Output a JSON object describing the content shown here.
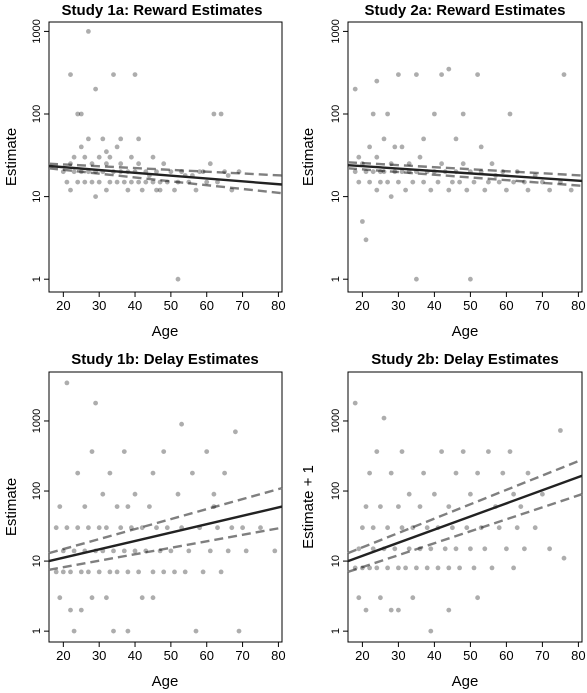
{
  "chart_data": [
    {
      "type": "scatter",
      "title": "Study 1a: Reward Estimates",
      "xlabel": "Age",
      "ylabel": "Estimate",
      "x_ticks": [
        "20",
        "30",
        "40",
        "50",
        "60",
        "70",
        "80"
      ],
      "y_ticks": [
        "1",
        "10",
        "100",
        "1000"
      ],
      "xlim": [
        16,
        81
      ],
      "ylim": [
        0.7,
        1300
      ],
      "y_scale": "log",
      "points": [
        [
          20,
          20
        ],
        [
          21,
          15
        ],
        [
          22,
          25
        ],
        [
          22,
          12
        ],
        [
          23,
          30
        ],
        [
          23,
          20
        ],
        [
          24,
          15
        ],
        [
          24,
          100
        ],
        [
          25,
          20
        ],
        [
          25,
          40
        ],
        [
          26,
          15
        ],
        [
          26,
          30
        ],
        [
          27,
          20
        ],
        [
          27,
          50
        ],
        [
          27,
          1000
        ],
        [
          28,
          15
        ],
        [
          28,
          25
        ],
        [
          29,
          20
        ],
        [
          29,
          10
        ],
        [
          30,
          30
        ],
        [
          30,
          15
        ],
        [
          31,
          20
        ],
        [
          31,
          50
        ],
        [
          32,
          25
        ],
        [
          32,
          12
        ],
        [
          33,
          15
        ],
        [
          33,
          30
        ],
        [
          34,
          20
        ],
        [
          34,
          300
        ],
        [
          35,
          15
        ],
        [
          35,
          40
        ],
        [
          36,
          20
        ],
        [
          36,
          25
        ],
        [
          37,
          15
        ],
        [
          38,
          20
        ],
        [
          38,
          12
        ],
        [
          39,
          15
        ],
        [
          39,
          30
        ],
        [
          40,
          20
        ],
        [
          40,
          300
        ],
        [
          41,
          15
        ],
        [
          41,
          25
        ],
        [
          42,
          12
        ],
        [
          43,
          20
        ],
        [
          43,
          15
        ],
        [
          44,
          18
        ],
        [
          45,
          15
        ],
        [
          46,
          20
        ],
        [
          46,
          12
        ],
        [
          47,
          15
        ],
        [
          48,
          25
        ],
        [
          49,
          15
        ],
        [
          50,
          20
        ],
        [
          51,
          12
        ],
        [
          52,
          1
        ],
        [
          52,
          15
        ],
        [
          53,
          20
        ],
        [
          55,
          15
        ],
        [
          56,
          18
        ],
        [
          57,
          12
        ],
        [
          58,
          20
        ],
        [
          60,
          15
        ],
        [
          61,
          25
        ],
        [
          62,
          100
        ],
        [
          63,
          15
        ],
        [
          64,
          100
        ],
        [
          65,
          20
        ],
        [
          67,
          12
        ],
        [
          69,
          20
        ],
        [
          22,
          300
        ],
        [
          29,
          200
        ],
        [
          25,
          100
        ],
        [
          45,
          30
        ],
        [
          36,
          50
        ],
        [
          32,
          35
        ],
        [
          54,
          18
        ],
        [
          41,
          50
        ],
        [
          59,
          20
        ],
        [
          47,
          12
        ],
        [
          66,
          18
        ]
      ],
      "fit_line": {
        "x": [
          16,
          81
        ],
        "y": [
          23.5,
          14
        ]
      },
      "ci_upper": {
        "x": [
          16,
          81
        ],
        "y": [
          25,
          18
        ]
      },
      "ci_lower": {
        "x": [
          16,
          81
        ],
        "y": [
          22,
          11
        ]
      }
    },
    {
      "type": "scatter",
      "title": "Study 2a: Reward Estimates",
      "xlabel": "Age",
      "ylabel": "Estimate",
      "x_ticks": [
        "20",
        "30",
        "40",
        "50",
        "60",
        "70",
        "80"
      ],
      "y_ticks": [
        "1",
        "10",
        "100",
        "1000"
      ],
      "xlim": [
        16,
        81
      ],
      "ylim": [
        0.7,
        1300
      ],
      "y_scale": "log",
      "points": [
        [
          18,
          20
        ],
        [
          18,
          200
        ],
        [
          19,
          15
        ],
        [
          19,
          30
        ],
        [
          20,
          25
        ],
        [
          20,
          5
        ],
        [
          21,
          3
        ],
        [
          21,
          20
        ],
        [
          22,
          15
        ],
        [
          22,
          40
        ],
        [
          23,
          20
        ],
        [
          23,
          100
        ],
        [
          24,
          30
        ],
        [
          24,
          12
        ],
        [
          25,
          20
        ],
        [
          25,
          15
        ],
        [
          26,
          50
        ],
        [
          26,
          20
        ],
        [
          27,
          15
        ],
        [
          27,
          100
        ],
        [
          28,
          25
        ],
        [
          28,
          10
        ],
        [
          29,
          20
        ],
        [
          30,
          15
        ],
        [
          30,
          300
        ],
        [
          31,
          20
        ],
        [
          31,
          40
        ],
        [
          32,
          12
        ],
        [
          33,
          25
        ],
        [
          33,
          20
        ],
        [
          34,
          15
        ],
        [
          35,
          1
        ],
        [
          35,
          20
        ],
        [
          36,
          30
        ],
        [
          37,
          15
        ],
        [
          37,
          50
        ],
        [
          38,
          20
        ],
        [
          39,
          12
        ],
        [
          40,
          20
        ],
        [
          40,
          100
        ],
        [
          41,
          15
        ],
        [
          42,
          25
        ],
        [
          42,
          300
        ],
        [
          43,
          20
        ],
        [
          44,
          350
        ],
        [
          44,
          12
        ],
        [
          45,
          15
        ],
        [
          46,
          20
        ],
        [
          46,
          50
        ],
        [
          47,
          15
        ],
        [
          48,
          25
        ],
        [
          49,
          12
        ],
        [
          50,
          1
        ],
        [
          50,
          20
        ],
        [
          51,
          15
        ],
        [
          52,
          300
        ],
        [
          53,
          20
        ],
        [
          54,
          12
        ],
        [
          55,
          15
        ],
        [
          56,
          25
        ],
        [
          57,
          18
        ],
        [
          58,
          15
        ],
        [
          59,
          20
        ],
        [
          60,
          12
        ],
        [
          61,
          100
        ],
        [
          62,
          15
        ],
        [
          63,
          20
        ],
        [
          65,
          15
        ],
        [
          66,
          12
        ],
        [
          68,
          18
        ],
        [
          70,
          15
        ],
        [
          72,
          12
        ],
        [
          75,
          15
        ],
        [
          76,
          300
        ],
        [
          78,
          12
        ],
        [
          24,
          250
        ],
        [
          35,
          300
        ],
        [
          48,
          100
        ],
        [
          53,
          40
        ],
        [
          29,
          40
        ]
      ],
      "fit_line": {
        "x": [
          16,
          81
        ],
        "y": [
          24,
          15.5
        ]
      },
      "ci_upper": {
        "x": [
          16,
          81
        ],
        "y": [
          26,
          18
        ]
      },
      "ci_lower": {
        "x": [
          16,
          81
        ],
        "y": [
          22,
          13.5
        ]
      }
    },
    {
      "type": "scatter",
      "title": "Study 1b: Delay Estimates",
      "xlabel": "Age",
      "ylabel": "Estimate",
      "x_ticks": [
        "20",
        "30",
        "40",
        "50",
        "60",
        "70",
        "80"
      ],
      "y_ticks": [
        "1",
        "10",
        "100",
        "1000"
      ],
      "xlim": [
        16,
        81
      ],
      "ylim": [
        0.7,
        5000
      ],
      "y_scale": "log",
      "points": [
        [
          18,
          7
        ],
        [
          18,
          30
        ],
        [
          19,
          3
        ],
        [
          19,
          60
        ],
        [
          20,
          14
        ],
        [
          20,
          7
        ],
        [
          21,
          3500
        ],
        [
          21,
          30
        ],
        [
          22,
          7
        ],
        [
          22,
          2
        ],
        [
          23,
          14
        ],
        [
          23,
          1
        ],
        [
          24,
          30
        ],
        [
          24,
          180
        ],
        [
          25,
          7
        ],
        [
          25,
          2
        ],
        [
          26,
          60
        ],
        [
          26,
          14
        ],
        [
          27,
          30
        ],
        [
          27,
          7
        ],
        [
          28,
          365
        ],
        [
          28,
          3
        ],
        [
          29,
          14
        ],
        [
          29,
          1800
        ],
        [
          30,
          30
        ],
        [
          30,
          7
        ],
        [
          31,
          90
        ],
        [
          31,
          14
        ],
        [
          32,
          30
        ],
        [
          32,
          3
        ],
        [
          33,
          7
        ],
        [
          33,
          180
        ],
        [
          34,
          14
        ],
        [
          34,
          1
        ],
        [
          35,
          60
        ],
        [
          35,
          7
        ],
        [
          36,
          30
        ],
        [
          37,
          14
        ],
        [
          37,
          365
        ],
        [
          38,
          7
        ],
        [
          38,
          1
        ],
        [
          39,
          30
        ],
        [
          40,
          14
        ],
        [
          40,
          90
        ],
        [
          41,
          7
        ],
        [
          42,
          30
        ],
        [
          42,
          3
        ],
        [
          43,
          14
        ],
        [
          44,
          60
        ],
        [
          45,
          7
        ],
        [
          45,
          180
        ],
        [
          46,
          30
        ],
        [
          47,
          14
        ],
        [
          48,
          7
        ],
        [
          48,
          365
        ],
        [
          49,
          30
        ],
        [
          50,
          14
        ],
        [
          51,
          7
        ],
        [
          52,
          90
        ],
        [
          53,
          900
        ],
        [
          53,
          30
        ],
        [
          54,
          7
        ],
        [
          55,
          14
        ],
        [
          56,
          180
        ],
        [
          57,
          1
        ],
        [
          58,
          30
        ],
        [
          59,
          7
        ],
        [
          60,
          365
        ],
        [
          61,
          14
        ],
        [
          62,
          60
        ],
        [
          63,
          30
        ],
        [
          64,
          7
        ],
        [
          65,
          180
        ],
        [
          66,
          14
        ],
        [
          67,
          30
        ],
        [
          68,
          700
        ],
        [
          69,
          1
        ],
        [
          70,
          30
        ],
        [
          71,
          14
        ],
        [
          75,
          30
        ],
        [
          79,
          14
        ],
        [
          45,
          3
        ],
        [
          62,
          90
        ],
        [
          38,
          60
        ]
      ],
      "fit_line": {
        "x": [
          16,
          81
        ],
        "y": [
          10,
          60
        ]
      },
      "ci_upper": {
        "x": [
          16,
          81
        ],
        "y": [
          13,
          110
        ]
      },
      "ci_lower": {
        "x": [
          16,
          81
        ],
        "y": [
          7.5,
          30
        ]
      }
    },
    {
      "type": "scatter",
      "title": "Study 2b: Delay Estimates",
      "xlabel": "Age",
      "ylabel": "Estimate + 1",
      "x_ticks": [
        "20",
        "30",
        "40",
        "50",
        "60",
        "70",
        "80"
      ],
      "y_ticks": [
        "1",
        "10",
        "100",
        "1000"
      ],
      "xlim": [
        16,
        81
      ],
      "ylim": [
        0.7,
        5000
      ],
      "y_scale": "log",
      "points": [
        [
          18,
          8
        ],
        [
          18,
          1800
        ],
        [
          19,
          15
        ],
        [
          19,
          3
        ],
        [
          20,
          30
        ],
        [
          20,
          8
        ],
        [
          21,
          60
        ],
        [
          21,
          2
        ],
        [
          22,
          8
        ],
        [
          22,
          180
        ],
        [
          23,
          30
        ],
        [
          23,
          15
        ],
        [
          24,
          8
        ],
        [
          24,
          365
        ],
        [
          25,
          60
        ],
        [
          25,
          3
        ],
        [
          26,
          15
        ],
        [
          26,
          1100
        ],
        [
          27,
          8
        ],
        [
          27,
          30
        ],
        [
          28,
          180
        ],
        [
          28,
          2
        ],
        [
          29,
          15
        ],
        [
          30,
          60
        ],
        [
          30,
          8
        ],
        [
          31,
          30
        ],
        [
          31,
          365
        ],
        [
          32,
          8
        ],
        [
          33,
          15
        ],
        [
          33,
          90
        ],
        [
          34,
          30
        ],
        [
          34,
          3
        ],
        [
          35,
          8
        ],
        [
          36,
          60
        ],
        [
          36,
          15
        ],
        [
          37,
          180
        ],
        [
          38,
          30
        ],
        [
          38,
          8
        ],
        [
          39,
          1
        ],
        [
          39,
          15
        ],
        [
          40,
          90
        ],
        [
          41,
          8
        ],
        [
          41,
          30
        ],
        [
          42,
          365
        ],
        [
          43,
          15
        ],
        [
          44,
          8
        ],
        [
          44,
          60
        ],
        [
          45,
          30
        ],
        [
          46,
          180
        ],
        [
          46,
          15
        ],
        [
          47,
          8
        ],
        [
          48,
          365
        ],
        [
          49,
          30
        ],
        [
          50,
          15
        ],
        [
          50,
          90
        ],
        [
          51,
          8
        ],
        [
          52,
          180
        ],
        [
          53,
          30
        ],
        [
          54,
          15
        ],
        [
          55,
          365
        ],
        [
          56,
          8
        ],
        [
          57,
          60
        ],
        [
          58,
          30
        ],
        [
          59,
          180
        ],
        [
          60,
          15
        ],
        [
          61,
          365
        ],
        [
          62,
          90
        ],
        [
          63,
          30
        ],
        [
          64,
          60
        ],
        [
          65,
          15
        ],
        [
          66,
          180
        ],
        [
          68,
          30
        ],
        [
          70,
          90
        ],
        [
          72,
          15
        ],
        [
          75,
          730
        ],
        [
          76,
          11
        ],
        [
          52,
          3
        ],
        [
          44,
          2
        ],
        [
          30,
          2
        ],
        [
          62,
          8
        ]
      ],
      "fit_line": {
        "x": [
          16,
          81
        ],
        "y": [
          10,
          165
        ]
      },
      "ci_upper": {
        "x": [
          16,
          81
        ],
        "y": [
          13,
          280
        ]
      },
      "ci_lower": {
        "x": [
          16,
          81
        ],
        "y": [
          7,
          90
        ]
      }
    }
  ],
  "colors": {
    "points": "#000000",
    "fit_line": "#222222",
    "ci_lines": "#7f7f7f",
    "background": "#ffffff"
  }
}
